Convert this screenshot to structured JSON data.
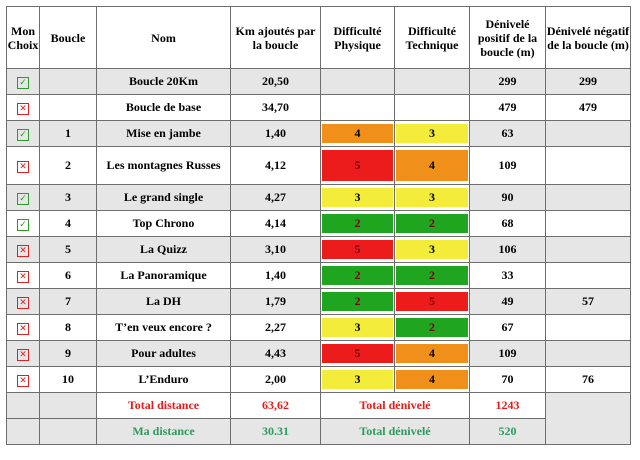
{
  "headers": {
    "mon_choix": "Mon Choix",
    "boucle": "Boucle",
    "nom": "Nom",
    "km": "Km ajoutés par la boucle",
    "difficulte_physique": "Difficulté Physique",
    "difficulte_technique": "Difficulté Technique",
    "denivele_positif": "Dénivelé positif de la boucle (m)",
    "denivele_negatif": "Dénivelé négatif de la boucle (m)"
  },
  "rows": [
    {
      "checked": true,
      "boucle": "",
      "nom": "Boucle 20Km",
      "km": "20,50",
      "physique": "",
      "technique": "",
      "pos": "299",
      "neg": "299"
    },
    {
      "checked": false,
      "boucle": "",
      "nom": "Boucle de base",
      "km": "34,70",
      "physique": "",
      "technique": "",
      "pos": "479",
      "neg": "479"
    },
    {
      "checked": true,
      "boucle": "1",
      "nom": "Mise en jambe",
      "km": "1,40",
      "physique": "4",
      "technique": "3",
      "pos": "63",
      "neg": ""
    },
    {
      "checked": false,
      "boucle": "2",
      "nom": "Les montagnes Russes",
      "km": "4,12",
      "physique": "5",
      "technique": "4",
      "pos": "109",
      "neg": ""
    },
    {
      "checked": true,
      "boucle": "3",
      "nom": "Le grand single",
      "km": "4,27",
      "physique": "3",
      "technique": "3",
      "pos": "90",
      "neg": ""
    },
    {
      "checked": true,
      "boucle": "4",
      "nom": "Top Chrono",
      "km": "4,14",
      "physique": "2",
      "technique": "2",
      "pos": "68",
      "neg": ""
    },
    {
      "checked": false,
      "boucle": "5",
      "nom": "La Quizz",
      "km": "3,10",
      "physique": "5",
      "technique": "3",
      "pos": "106",
      "neg": ""
    },
    {
      "checked": false,
      "boucle": "6",
      "nom": "La Panoramique",
      "km": "1,40",
      "physique": "2",
      "technique": "2",
      "pos": "33",
      "neg": ""
    },
    {
      "checked": false,
      "boucle": "7",
      "nom": "La DH",
      "km": "1,79",
      "physique": "2",
      "technique": "5",
      "pos": "49",
      "neg": "57"
    },
    {
      "checked": false,
      "boucle": "8",
      "nom": "T’en veux encore ?",
      "km": "2,27",
      "physique": "3",
      "technique": "2",
      "pos": "67",
      "neg": ""
    },
    {
      "checked": false,
      "boucle": "9",
      "nom": "Pour adultes",
      "km": "4,43",
      "physique": "5",
      "technique": "4",
      "pos": "109",
      "neg": ""
    },
    {
      "checked": false,
      "boucle": "10",
      "nom": "L’Enduro",
      "km": "2,00",
      "physique": "3",
      "technique": "4",
      "pos": "70",
      "neg": "76"
    }
  ],
  "totals": {
    "total_distance_label": "Total distance",
    "total_distance_value": "63,62",
    "total_denivele_label": "Total dénivelé",
    "total_denivele_value": "1243",
    "ma_distance_label": "Ma distance",
    "ma_distance_value": "30.31",
    "mon_denivele_label": "Total dénivelé",
    "mon_denivele_value": "520"
  },
  "icons": {
    "checked": "checked-checkbox-icon",
    "unchecked": "crossed-checkbox-icon"
  },
  "colors": {
    "level_2": "#1fa51f",
    "level_3": "#f4ec3a",
    "level_4": "#f0901a",
    "level_5": "#ec1c1c",
    "total_red": "#e41b1b",
    "total_green": "#2e9a5e"
  }
}
